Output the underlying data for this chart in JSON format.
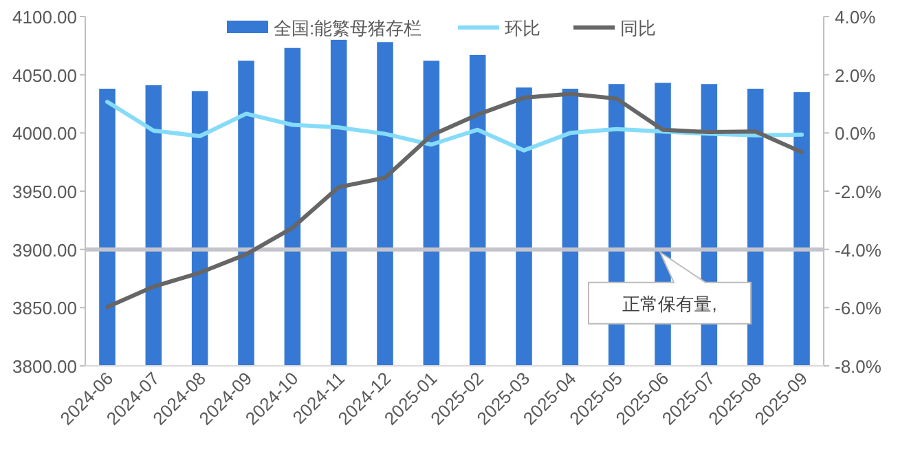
{
  "chart_data": {
    "type": "bar",
    "categories": [
      "2024-06",
      "2024-07",
      "2024-08",
      "2024-09",
      "2024-10",
      "2024-11",
      "2024-12",
      "2025-01",
      "2025-02",
      "2025-03",
      "2025-04",
      "2025-05",
      "2025-06",
      "2025-07",
      "2025-08",
      "2025-09"
    ],
    "series": [
      {
        "name": "全国:能繁母猪存栏",
        "color": "#3579d5",
        "values": [
          4038,
          4041,
          4036,
          4062,
          4073,
          4080,
          4078,
          4062,
          4067,
          4039,
          4038,
          4042,
          4043,
          4042,
          4038,
          4035
        ]
      },
      {
        "name": "环比",
        "type": "line",
        "axis": "y2",
        "color": "#86dcf8",
        "values": [
          1.07,
          0.08,
          -0.11,
          0.66,
          0.28,
          0.19,
          -0.03,
          -0.4,
          0.11,
          -0.6,
          0.0,
          0.13,
          0.05,
          -0.03,
          -0.08,
          -0.06
        ]
      },
      {
        "name": "同比",
        "type": "line",
        "axis": "y2",
        "color": "#666666",
        "values": [
          -5.98,
          -5.28,
          -4.8,
          -4.17,
          -3.26,
          -1.86,
          -1.54,
          -0.08,
          0.63,
          1.21,
          1.34,
          1.18,
          0.11,
          0.03,
          0.05,
          -0.66
        ]
      }
    ],
    "ylim": [
      3800,
      4100
    ],
    "yticks": [
      {
        "value": 3800,
        "label": "3800.00"
      },
      {
        "value": 3850,
        "label": "3850.00"
      },
      {
        "value": 3900,
        "label": "3900.00"
      },
      {
        "value": 3950,
        "label": "3950.00"
      },
      {
        "value": 4000,
        "label": "4000.00"
      },
      {
        "value": 4050,
        "label": "4050.00"
      },
      {
        "value": 4100,
        "label": "4100.00"
      }
    ],
    "y2lim": [
      -8,
      4
    ],
    "y2ticks": [
      {
        "value": -8,
        "label": "-8.0%"
      },
      {
        "value": -6,
        "label": "-6.0%"
      },
      {
        "value": -4,
        "label": "-4.0%"
      },
      {
        "value": -2,
        "label": "-2.0%"
      },
      {
        "value": 0,
        "label": "0.0%"
      },
      {
        "value": 2,
        "label": "2.0%"
      },
      {
        "value": 4,
        "label": "4.0%"
      }
    ],
    "ref_lines": [
      {
        "axis": "y",
        "value": 3900,
        "label": "正常保有量,",
        "color": "#c4c4cc"
      }
    ],
    "legend": "top",
    "grid": false,
    "marker": "none",
    "line_style": "solid"
  }
}
